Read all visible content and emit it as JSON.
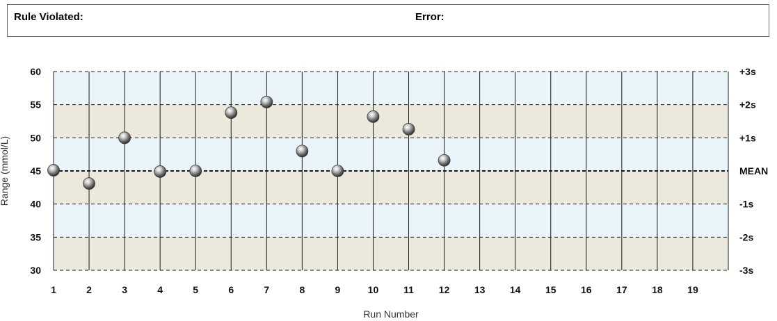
{
  "header": {
    "rule_violated_label": "Rule Violated:",
    "error_label": "Error:"
  },
  "chart_data": {
    "type": "scatter",
    "xlabel": "Run Number",
    "ylabel": "Range (mmol/L)",
    "x_ticks": [
      1,
      2,
      3,
      4,
      5,
      6,
      7,
      8,
      9,
      10,
      11,
      12,
      13,
      14,
      15,
      16,
      17,
      18,
      19
    ],
    "y_ticks": [
      30,
      35,
      40,
      45,
      50,
      55,
      60
    ],
    "ylim": [
      30,
      60
    ],
    "xlim": [
      1,
      19
    ],
    "sd_labels": [
      {
        "value": 60,
        "label": "+3s"
      },
      {
        "value": 55,
        "label": "+2s"
      },
      {
        "value": 50,
        "label": "+1s"
      },
      {
        "value": 45,
        "label": "MEAN"
      },
      {
        "value": 40,
        "label": "-1s"
      },
      {
        "value": 35,
        "label": "-2s"
      },
      {
        "value": 30,
        "label": "-3s"
      }
    ],
    "bands": [
      {
        "from": 55,
        "to": 60,
        "color": "#e9f4fb"
      },
      {
        "from": 50,
        "to": 55,
        "color": "#ebe8dc"
      },
      {
        "from": 45,
        "to": 50,
        "color": "#e9f4fb"
      },
      {
        "from": 40,
        "to": 45,
        "color": "#ebe8dc"
      },
      {
        "from": 35,
        "to": 40,
        "color": "#e9f4fb"
      },
      {
        "from": 30,
        "to": 35,
        "color": "#ebe8dc"
      }
    ],
    "grid": true,
    "points": [
      {
        "x": 1,
        "y": 45.1
      },
      {
        "x": 2,
        "y": 43.1
      },
      {
        "x": 3,
        "y": 50.0
      },
      {
        "x": 4,
        "y": 44.9
      },
      {
        "x": 5,
        "y": 45.0
      },
      {
        "x": 6,
        "y": 53.8
      },
      {
        "x": 7,
        "y": 55.4
      },
      {
        "x": 8,
        "y": 48.0
      },
      {
        "x": 9,
        "y": 45.0
      },
      {
        "x": 10,
        "y": 53.2
      },
      {
        "x": 11,
        "y": 51.3
      },
      {
        "x": 12,
        "y": 46.6
      }
    ]
  }
}
